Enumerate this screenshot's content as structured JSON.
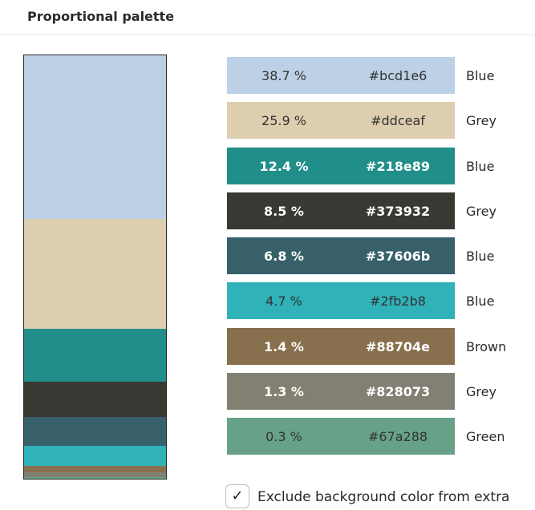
{
  "header": {
    "title": "Proportional palette"
  },
  "palette": [
    {
      "percent": "38.7 %",
      "hex": "#bcd1e6",
      "name": "Blue",
      "fraction": 0.387,
      "text_style": "dark"
    },
    {
      "percent": "25.9 %",
      "hex": "#ddceaf",
      "name": "Grey",
      "fraction": 0.259,
      "text_style": "dark"
    },
    {
      "percent": "12.4 %",
      "hex": "#218e89",
      "name": "Blue",
      "fraction": 0.124,
      "text_style": "light"
    },
    {
      "percent": "8.5 %",
      "hex": "#373932",
      "name": "Grey",
      "fraction": 0.085,
      "text_style": "light"
    },
    {
      "percent": "6.8 %",
      "hex": "#37606b",
      "name": "Blue",
      "fraction": 0.068,
      "text_style": "light"
    },
    {
      "percent": "4.7 %",
      "hex": "#2fb2b8",
      "name": "Blue",
      "fraction": 0.047,
      "text_style": "dark"
    },
    {
      "percent": "1.4 %",
      "hex": "#88704e",
      "name": "Brown",
      "fraction": 0.014,
      "text_style": "light"
    },
    {
      "percent": "1.3 %",
      "hex": "#828073",
      "name": "Grey",
      "fraction": 0.013,
      "text_style": "light"
    },
    {
      "percent": "0.3 %",
      "hex": "#67a288",
      "name": "Green",
      "fraction": 0.003,
      "text_style": "dark"
    }
  ],
  "exclude_option": {
    "checked": true,
    "check_glyph": "✓",
    "label": "Exclude background color from extra"
  }
}
